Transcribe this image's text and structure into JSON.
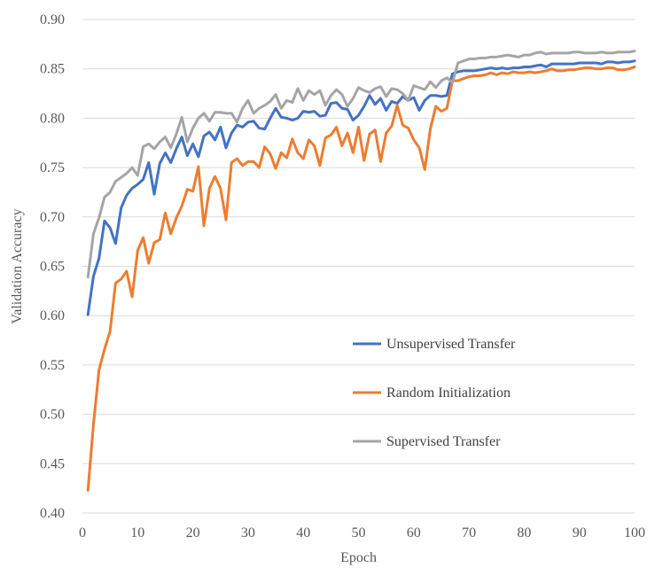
{
  "chart_data": {
    "type": "line",
    "title": "",
    "xlabel": "Epoch",
    "ylabel": "Validation Accuracy",
    "xlim": [
      0,
      100
    ],
    "ylim": [
      0.4,
      0.9
    ],
    "xticks": [
      0,
      10,
      20,
      30,
      40,
      50,
      60,
      70,
      80,
      90,
      100
    ],
    "yticks": [
      "0.40",
      "0.45",
      "0.50",
      "0.55",
      "0.60",
      "0.65",
      "0.70",
      "0.75",
      "0.80",
      "0.85",
      "0.90"
    ],
    "grid": "horizontal",
    "legend_position": "inside-right",
    "x": [
      1,
      2,
      3,
      4,
      5,
      6,
      7,
      8,
      9,
      10,
      11,
      12,
      13,
      14,
      15,
      16,
      17,
      18,
      19,
      20,
      21,
      22,
      23,
      24,
      25,
      26,
      27,
      28,
      29,
      30,
      31,
      32,
      33,
      34,
      35,
      36,
      37,
      38,
      39,
      40,
      41,
      42,
      43,
      44,
      45,
      46,
      47,
      48,
      49,
      50,
      51,
      52,
      53,
      54,
      55,
      56,
      57,
      58,
      59,
      60,
      61,
      62,
      63,
      64,
      65,
      66,
      67,
      68,
      69,
      70,
      71,
      72,
      73,
      74,
      75,
      76,
      77,
      78,
      79,
      80,
      81,
      82,
      83,
      84,
      85,
      86,
      87,
      88,
      89,
      90,
      91,
      92,
      93,
      94,
      95,
      96,
      97,
      98,
      99,
      100
    ],
    "series": [
      {
        "name": "Unsupervised Transfer",
        "color": "#4472c4",
        "values": [
          0.601,
          0.64,
          0.658,
          0.696,
          0.689,
          0.673,
          0.709,
          0.722,
          0.729,
          0.733,
          0.738,
          0.755,
          0.723,
          0.754,
          0.765,
          0.755,
          0.769,
          0.781,
          0.762,
          0.774,
          0.761,
          0.782,
          0.786,
          0.778,
          0.791,
          0.77,
          0.785,
          0.793,
          0.791,
          0.796,
          0.797,
          0.79,
          0.789,
          0.8,
          0.81,
          0.801,
          0.8,
          0.798,
          0.8,
          0.807,
          0.806,
          0.807,
          0.802,
          0.803,
          0.815,
          0.816,
          0.81,
          0.809,
          0.798,
          0.803,
          0.812,
          0.823,
          0.814,
          0.82,
          0.808,
          0.817,
          0.815,
          0.822,
          0.818,
          0.821,
          0.808,
          0.818,
          0.823,
          0.823,
          0.822,
          0.823,
          0.845,
          0.847,
          0.848,
          0.848,
          0.848,
          0.849,
          0.85,
          0.851,
          0.85,
          0.851,
          0.85,
          0.851,
          0.851,
          0.852,
          0.852,
          0.853,
          0.854,
          0.852,
          0.855,
          0.855,
          0.855,
          0.855,
          0.855,
          0.856,
          0.856,
          0.856,
          0.856,
          0.855,
          0.857,
          0.857,
          0.856,
          0.857,
          0.857,
          0.858
        ]
      },
      {
        "name": "Random Initialization",
        "color": "#ed7d31",
        "values": [
          0.423,
          0.49,
          0.545,
          0.566,
          0.584,
          0.633,
          0.637,
          0.645,
          0.619,
          0.666,
          0.679,
          0.653,
          0.674,
          0.677,
          0.704,
          0.683,
          0.699,
          0.711,
          0.728,
          0.726,
          0.751,
          0.691,
          0.729,
          0.741,
          0.729,
          0.697,
          0.755,
          0.759,
          0.752,
          0.756,
          0.756,
          0.75,
          0.771,
          0.764,
          0.749,
          0.765,
          0.76,
          0.779,
          0.765,
          0.759,
          0.778,
          0.772,
          0.752,
          0.78,
          0.783,
          0.791,
          0.772,
          0.785,
          0.765,
          0.791,
          0.757,
          0.784,
          0.788,
          0.756,
          0.785,
          0.792,
          0.813,
          0.793,
          0.79,
          0.778,
          0.77,
          0.748,
          0.789,
          0.812,
          0.807,
          0.81,
          0.838,
          0.838,
          0.84,
          0.842,
          0.843,
          0.843,
          0.844,
          0.846,
          0.844,
          0.846,
          0.845,
          0.847,
          0.846,
          0.846,
          0.847,
          0.846,
          0.847,
          0.848,
          0.85,
          0.848,
          0.848,
          0.849,
          0.849,
          0.85,
          0.851,
          0.851,
          0.85,
          0.85,
          0.851,
          0.851,
          0.849,
          0.849,
          0.85,
          0.852
        ]
      },
      {
        "name": "Supervised Transfer",
        "color": "#a5a5a5",
        "values": [
          0.639,
          0.683,
          0.699,
          0.72,
          0.725,
          0.736,
          0.74,
          0.744,
          0.75,
          0.742,
          0.771,
          0.774,
          0.769,
          0.776,
          0.781,
          0.77,
          0.784,
          0.801,
          0.776,
          0.79,
          0.8,
          0.805,
          0.797,
          0.806,
          0.806,
          0.805,
          0.805,
          0.796,
          0.81,
          0.818,
          0.805,
          0.81,
          0.813,
          0.817,
          0.824,
          0.81,
          0.818,
          0.816,
          0.83,
          0.818,
          0.828,
          0.824,
          0.828,
          0.813,
          0.823,
          0.829,
          0.824,
          0.812,
          0.82,
          0.831,
          0.828,
          0.826,
          0.83,
          0.832,
          0.822,
          0.83,
          0.829,
          0.825,
          0.818,
          0.833,
          0.831,
          0.829,
          0.837,
          0.831,
          0.838,
          0.841,
          0.836,
          0.856,
          0.858,
          0.86,
          0.86,
          0.861,
          0.861,
          0.862,
          0.862,
          0.863,
          0.864,
          0.863,
          0.862,
          0.864,
          0.864,
          0.866,
          0.867,
          0.865,
          0.866,
          0.866,
          0.866,
          0.866,
          0.867,
          0.867,
          0.866,
          0.866,
          0.866,
          0.867,
          0.866,
          0.866,
          0.867,
          0.867,
          0.867,
          0.868
        ]
      }
    ]
  }
}
